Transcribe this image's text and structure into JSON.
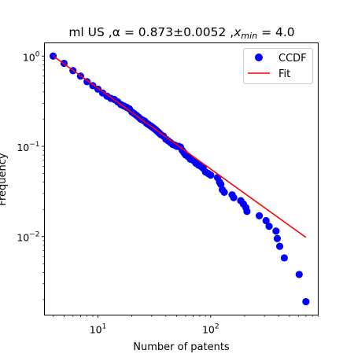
{
  "chart_data": {
    "type": "scatter",
    "title": "ml US",
    "title_alpha_label": "α = 0.873±0.0052",
    "title_xmin_label": "x",
    "title_xmin_sub": "min",
    "title_xmin_value": " = 4.0",
    "xlabel": "Number of patents",
    "ylabel": "Frequency",
    "xscale": "log",
    "yscale": "log",
    "xlim": [
      3.35,
      900
    ],
    "ylim": [
      0.00135,
      1.4
    ],
    "grid": false,
    "legend_position": "top-right",
    "x_ticks": [
      {
        "value": 10,
        "base": "10",
        "exp": "1"
      },
      {
        "value": 100,
        "base": "10",
        "exp": "2"
      }
    ],
    "y_ticks": [
      {
        "value": 0.01,
        "base": "10",
        "exp": "−2"
      },
      {
        "value": 0.1,
        "base": "10",
        "exp": "−1"
      },
      {
        "value": 1,
        "base": "10",
        "exp": "0"
      }
    ],
    "series": [
      {
        "name": "CCDF",
        "kind": "scatter",
        "color": "#0000ff",
        "points": [
          [
            4,
            1.0
          ],
          [
            5,
            0.83
          ],
          [
            6,
            0.69
          ],
          [
            7,
            0.6
          ],
          [
            8,
            0.52
          ],
          [
            9,
            0.47
          ],
          [
            10,
            0.43
          ],
          [
            11,
            0.39
          ],
          [
            12,
            0.36
          ],
          [
            13,
            0.34
          ],
          [
            14,
            0.33
          ],
          [
            15,
            0.31
          ],
          [
            16,
            0.29
          ],
          [
            17,
            0.28
          ],
          [
            18,
            0.27
          ],
          [
            19,
            0.26
          ],
          [
            20,
            0.24
          ],
          [
            21,
            0.23
          ],
          [
            22,
            0.22
          ],
          [
            23,
            0.21
          ],
          [
            24,
            0.2
          ],
          [
            25,
            0.195
          ],
          [
            26,
            0.19
          ],
          [
            27,
            0.18
          ],
          [
            28,
            0.175
          ],
          [
            29,
            0.17
          ],
          [
            30,
            0.165
          ],
          [
            31,
            0.16
          ],
          [
            32,
            0.155
          ],
          [
            33,
            0.15
          ],
          [
            34,
            0.145
          ],
          [
            35,
            0.14
          ],
          [
            36,
            0.135
          ],
          [
            38,
            0.13
          ],
          [
            40,
            0.12
          ],
          [
            42,
            0.115
          ],
          [
            44,
            0.11
          ],
          [
            46,
            0.105
          ],
          [
            48,
            0.103
          ],
          [
            50,
            0.1
          ],
          [
            52,
            0.1
          ],
          [
            54,
            0.098
          ],
          [
            56,
            0.09
          ],
          [
            58,
            0.085
          ],
          [
            60,
            0.08
          ],
          [
            63,
            0.077
          ],
          [
            66,
            0.072
          ],
          [
            70,
            0.07
          ],
          [
            74,
            0.065
          ],
          [
            78,
            0.062
          ],
          [
            82,
            0.06
          ],
          [
            86,
            0.057
          ],
          [
            90,
            0.052
          ],
          [
            95,
            0.05
          ],
          [
            100,
            0.048
          ],
          [
            115,
            0.045
          ],
          [
            120,
            0.04
          ],
          [
            123,
            0.038
          ],
          [
            127,
            0.033
          ],
          [
            132,
            0.031
          ],
          [
            155,
            0.029
          ],
          [
            160,
            0.027
          ],
          [
            185,
            0.025
          ],
          [
            195,
            0.023
          ],
          [
            205,
            0.021
          ],
          [
            210,
            0.019
          ],
          [
            270,
            0.017
          ],
          [
            310,
            0.015
          ],
          [
            330,
            0.013
          ],
          [
            380,
            0.0115
          ],
          [
            390,
            0.0095
          ],
          [
            410,
            0.0078
          ],
          [
            450,
            0.0058
          ],
          [
            610,
            0.0038
          ],
          [
            700,
            0.0019
          ]
        ]
      },
      {
        "name": "Fit",
        "kind": "line",
        "color": "#ff0000",
        "points": [
          [
            4,
            1.0
          ],
          [
            700,
            0.0098
          ]
        ]
      }
    ]
  }
}
